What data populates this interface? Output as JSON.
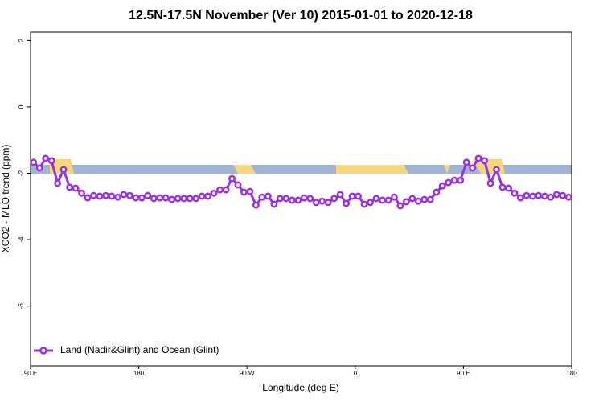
{
  "chart_data": {
    "type": "line",
    "title": "12.5N-17.5N November (Ver 10)   2015-01-01 to 2020-12-18",
    "x_label": "Longitude (deg E)",
    "y_label": "XCO2 - MLO trend (ppm)",
    "xlim": [
      90,
      540
    ],
    "xticks": [
      {
        "value": 90,
        "label": "90 E"
      },
      180,
      {
        "value": 270,
        "label": "90 W"
      },
      {
        "value": 360,
        "label": "0"
      },
      {
        "value": 450,
        "label": "90 E"
      },
      {
        "value": 540,
        "label": "180"
      }
    ],
    "ylim": [
      -7.8,
      2.25
    ],
    "yticks": [
      2,
      0,
      -2,
      -4,
      -6
    ],
    "legend": "bottom-left",
    "x": [
      92.5,
      97.5,
      102.5,
      107.5,
      112.5,
      117.5,
      122.5,
      127.5,
      132.5,
      137.5,
      142.5,
      147.5,
      152.5,
      157.5,
      162.5,
      167.5,
      172.5,
      177.5,
      182.5,
      187.5,
      192.5,
      197.5,
      202.5,
      207.5,
      212.5,
      217.5,
      222.5,
      227.5,
      232.5,
      237.5,
      242.5,
      247.5,
      252.5,
      257.5,
      262.5,
      267.5,
      272.5,
      277.5,
      282.5,
      287.5,
      292.5,
      297.5,
      302.5,
      307.5,
      312.5,
      317.5,
      322.5,
      327.5,
      332.5,
      337.5,
      342.5,
      347.5,
      352.5,
      357.5,
      362.5,
      367.5,
      372.5,
      377.5,
      382.5,
      387.5,
      392.5,
      397.5,
      402.5,
      407.5,
      412.5,
      417.5,
      422.5,
      427.5,
      432.5,
      437.5,
      442.5,
      447.5,
      452.5,
      457.5,
      462.5,
      467.5,
      472.5,
      477.5,
      482.5,
      487.5,
      492.5,
      497.5,
      502.5,
      507.5,
      512.5,
      517.5,
      522.5,
      527.5,
      532.5,
      537.5
    ],
    "series": [
      {
        "name": "Land (Nadir&Glint) and Ocean (Glint)",
        "color": "#9b30e0",
        "values": [
          -1.67,
          -1.84,
          -1.55,
          -1.62,
          -2.3,
          -1.89,
          -2.42,
          -2.45,
          -2.6,
          -2.74,
          -2.67,
          -2.69,
          -2.67,
          -2.69,
          -2.72,
          -2.64,
          -2.67,
          -2.74,
          -2.74,
          -2.67,
          -2.76,
          -2.74,
          -2.74,
          -2.79,
          -2.76,
          -2.76,
          -2.76,
          -2.76,
          -2.69,
          -2.69,
          -2.6,
          -2.5,
          -2.5,
          -2.16,
          -2.35,
          -2.57,
          -2.55,
          -2.96,
          -2.72,
          -2.69,
          -2.93,
          -2.76,
          -2.76,
          -2.81,
          -2.81,
          -2.74,
          -2.76,
          -2.88,
          -2.84,
          -2.88,
          -2.76,
          -2.64,
          -2.91,
          -2.69,
          -2.69,
          -2.93,
          -2.88,
          -2.76,
          -2.81,
          -2.81,
          -2.72,
          -2.98,
          -2.86,
          -2.76,
          -2.84,
          -2.79,
          -2.79,
          -2.57,
          -2.38,
          -2.28,
          -2.21,
          -2.21,
          -1.67,
          -1.84,
          -1.55,
          -1.62,
          -2.3,
          -1.89,
          -2.42,
          -2.45,
          -2.6,
          -2.74,
          -2.67,
          -2.69,
          -2.67,
          -2.69,
          -2.72,
          -2.64,
          -2.67,
          -2.72
        ]
      }
    ]
  }
}
